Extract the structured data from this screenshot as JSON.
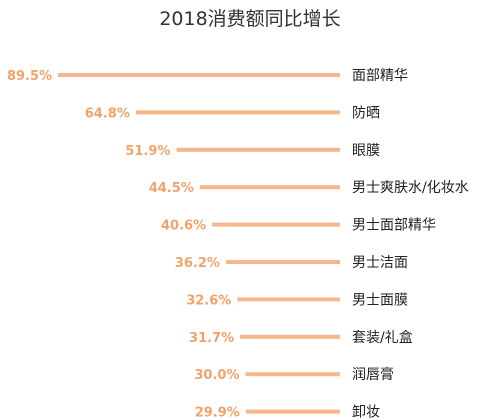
{
  "chart_data": {
    "type": "bar",
    "orientation": "horizontal",
    "title": "2018消费额同比增长",
    "categories": [
      "面部精华",
      "防晒",
      "眼膜",
      "男士爽肤水/化妆水",
      "男士面部精华",
      "男士洁面",
      "男士面膜",
      "套装/礼盒",
      "润唇膏",
      "卸妆"
    ],
    "values": [
      89.5,
      64.8,
      51.9,
      44.5,
      40.6,
      36.2,
      32.6,
      31.7,
      30.0,
      29.9
    ],
    "value_labels": [
      "89.5%",
      "64.8%",
      "51.9%",
      "44.5%",
      "40.6%",
      "36.2%",
      "32.6%",
      "31.7%",
      "30.0%",
      "29.9%"
    ],
    "unit": "%",
    "grid": false,
    "legend": "none",
    "colors": {
      "bar": "#F6B78A",
      "value_label": "#F0A36A",
      "category_label": "#222222",
      "title": "#333333"
    }
  }
}
